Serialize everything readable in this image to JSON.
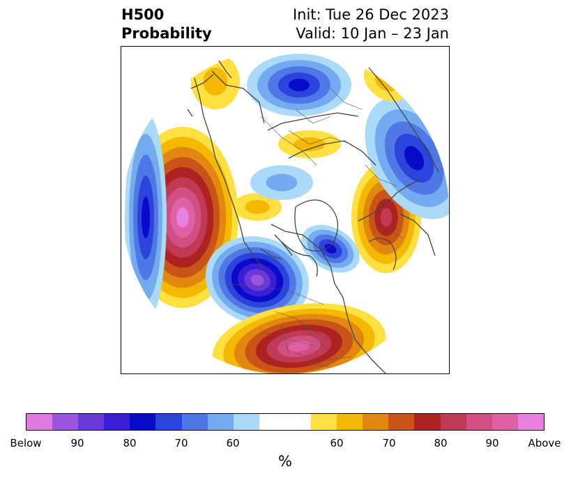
{
  "header": {
    "title_line1": "H500",
    "title_line2": "Probability",
    "init_text": "Init: Tue 26 Dec 2023",
    "valid_text": "Valid: 10 Jan – 23 Jan"
  },
  "colorbar": {
    "unit": "%",
    "colors": [
      "#e079e0",
      "#9a55de",
      "#6a3ad8",
      "#3a1fd6",
      "#0a0acb",
      "#2a44dc",
      "#4f78e6",
      "#74aaf0",
      "#aadaf8",
      "#ffffff",
      "#ffffff",
      "#ffe040",
      "#f4b800",
      "#e08810",
      "#c85418",
      "#ae2222",
      "#c03a55",
      "#d14f82",
      "#e060a6",
      "#e880de"
    ],
    "tick_labels": [
      "Below",
      "90",
      "80",
      "70",
      "60",
      "60",
      "70",
      "80",
      "90",
      "Above"
    ]
  },
  "map": {
    "projection": "north polar stereographic",
    "below_palette": [
      "#aadaf8",
      "#74aaf0",
      "#4f78e6",
      "#2a44dc",
      "#0a0acb",
      "#3a1fd6",
      "#6a3ad8",
      "#9a55de"
    ],
    "above_palette": [
      "#ffe040",
      "#f4b800",
      "#e08810",
      "#c85418",
      "#ae2222",
      "#c03a55",
      "#d14f82",
      "#e060a6",
      "#e880de"
    ],
    "coastline_color": "#444444"
  }
}
